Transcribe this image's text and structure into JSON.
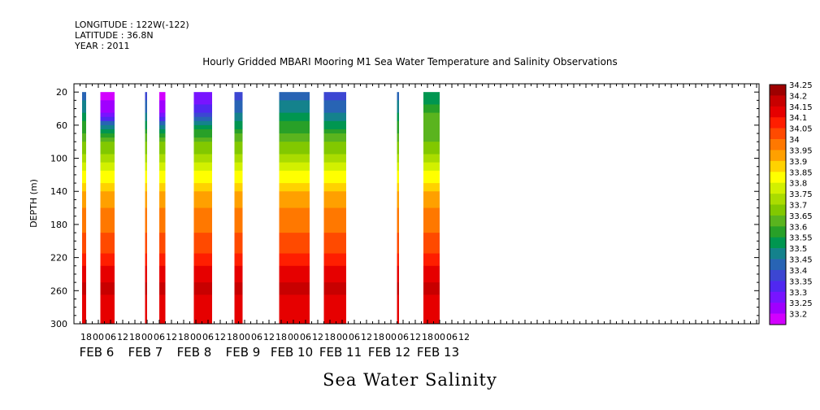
{
  "header": {
    "longitude": "LONGITUDE : 122W(-122)",
    "latitude": "LATITUDE : 36.8N",
    "year": "YEAR : 2011"
  },
  "title": "Hourly Gridded MBARI Mooring M1 Sea Water Temperature and Salinity Observations",
  "caption": "Sea Water Salinity",
  "chart_data": {
    "type": "heatmap",
    "title": "Hourly Gridded MBARI Mooring M1 Sea Water Temperature and Salinity Observations",
    "xlabel": "",
    "ylabel": "DEPTH (m)",
    "y_ticks": [
      20,
      60,
      100,
      140,
      180,
      220,
      260,
      300
    ],
    "ylim": [
      300,
      0
    ],
    "x_hour_ticks": [
      "18",
      "00",
      "06",
      "12",
      "18",
      "00",
      "06",
      "12",
      "18",
      "00",
      "06",
      "12",
      "18",
      "00",
      "06",
      "12",
      "18",
      "00",
      "06",
      "12",
      "18",
      "00",
      "06",
      "12",
      "18",
      "00",
      "06",
      "12",
      "18",
      "00",
      "06",
      "12"
    ],
    "x_day_labels": [
      "FEB  6",
      "FEB  7",
      "FEB  8",
      "FEB  9",
      "FEB 10",
      "FEB 11",
      "FEB 12",
      "FEB 13"
    ],
    "colorbar_levels": [
      "34.25",
      "34.2",
      "34.15",
      "34.1",
      "34.05",
      "34",
      "33.95",
      "33.9",
      "33.85",
      "33.8",
      "33.75",
      "33.7",
      "33.65",
      "33.6",
      "33.55",
      "33.5",
      "33.45",
      "33.4",
      "33.35",
      "33.3",
      "33.25",
      "33.2"
    ],
    "colors": {
      "34.25": "#9e0000",
      "34.2": "#c80000",
      "34.15": "#e60000",
      "34.1": "#ff1e00",
      "34.05": "#ff4a00",
      "34": "#ff7800",
      "33.95": "#ffa000",
      "33.9": "#ffd200",
      "33.85": "#ffff00",
      "33.8": "#d2f000",
      "33.75": "#aadc00",
      "33.7": "#82c800",
      "33.65": "#5ab41e",
      "33.6": "#28a028",
      "33.55": "#009650",
      "33.5": "#14828c",
      "33.45": "#2864b4",
      "33.4": "#3c46d2",
      "33.35": "#5028f0",
      "33.3": "#7814ff",
      "33.25": "#a000ff",
      "33.2": "#d200ff"
    },
    "data_segments": [
      {
        "start": "Feb 6 16:00",
        "end": "Feb 6 18:00",
        "surface_salinity": 33.45
      },
      {
        "start": "Feb 7 01:00",
        "end": "Feb 7 08:00",
        "surface_salinity": 33.2
      },
      {
        "start": "Feb 7 23:00",
        "end": "Feb 8 00:00",
        "surface_salinity": 33.4
      },
      {
        "start": "Feb 8 06:00",
        "end": "Feb 8 09:00",
        "surface_salinity": 33.2
      },
      {
        "start": "Feb 8 23:00",
        "end": "Feb 9 08:00",
        "surface_salinity": 33.3
      },
      {
        "start": "Feb 9 19:00",
        "end": "Feb 9 23:00",
        "surface_salinity": 33.4
      },
      {
        "start": "Feb 10 17:00",
        "end": "Feb 11 08:00",
        "surface_salinity": 33.45
      },
      {
        "start": "Feb 11 15:00",
        "end": "Feb 12 02:00",
        "surface_salinity": 33.4
      },
      {
        "start": "Feb 13 03:00",
        "end": "Feb 13 04:00",
        "surface_salinity": 33.45
      },
      {
        "start": "Feb 13 16:00",
        "end": "Feb 14 00:00",
        "surface_salinity": 33.55
      }
    ]
  }
}
